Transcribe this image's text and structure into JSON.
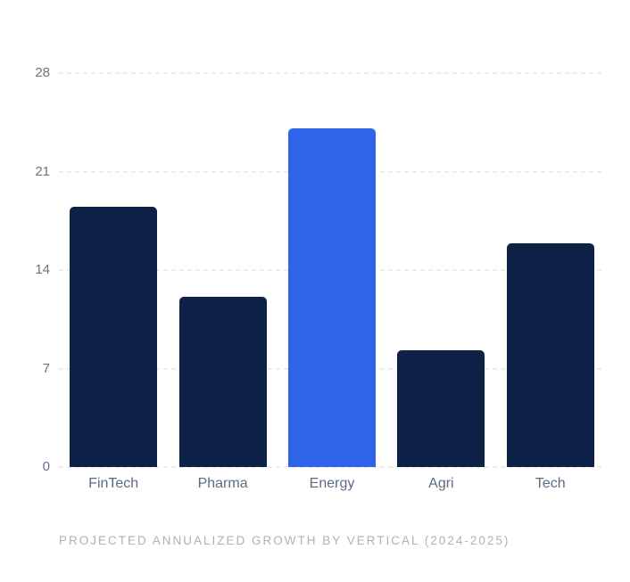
{
  "page": {
    "background": "#ffffff"
  },
  "chart_data": {
    "type": "bar",
    "categories": [
      "FinTech",
      "Pharma",
      "Energy",
      "Agri",
      "Tech"
    ],
    "values": [
      18.5,
      12.1,
      24.1,
      8.3,
      15.9
    ],
    "highlight_index": 2,
    "title": "PROJECTED ANNUALIZED GROWTH BY VERTICAL (2024-2025)",
    "xlabel": "",
    "ylabel": "",
    "ylim": [
      0,
      28
    ],
    "yticks": [
      0,
      7,
      14,
      21,
      28
    ],
    "grid": "horizontal-dashed",
    "legend": "none",
    "colors": {
      "bar": "#0d2246",
      "bar_highlight": "#2f64e8",
      "gridline": "#ececec",
      "ytick_label": "#64748b",
      "xtick_label": "#5b6b82",
      "title": "#abb2bd"
    }
  }
}
